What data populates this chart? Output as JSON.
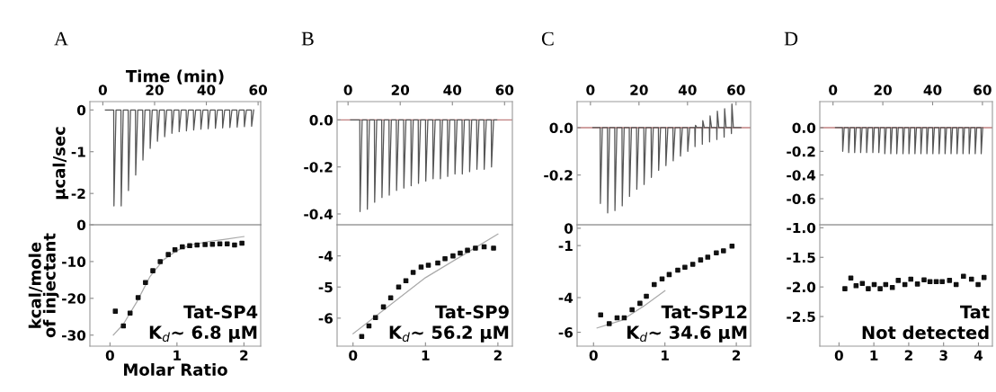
{
  "chart_data": [
    {
      "type": "line",
      "title": "A",
      "xlabel": "Time (min)",
      "ylabel": "µcal/sec",
      "xlim": [
        -5,
        61
      ],
      "xticks": [
        0,
        20,
        40,
        60
      ],
      "ylim": [
        -2.75,
        0.2
      ],
      "yticks": [
        0,
        -1,
        -2
      ],
      "series": [
        {
          "color": "#555555",
          "x": [
            1,
            4.2,
            4.3,
            5.1,
            7.0,
            7.1,
            7.9,
            9.8,
            9.9,
            10.7,
            12.6,
            12.7,
            13.5,
            15.4,
            15.5,
            16.3,
            18.2,
            18.3,
            19.1,
            21.0,
            21.1,
            21.9,
            23.8,
            23.9,
            24.7,
            26.6,
            26.7,
            27.5,
            29.4,
            29.5,
            30.3,
            32.2,
            32.3,
            33.1,
            35.0,
            35.1,
            35.9,
            37.8,
            37.9,
            38.7,
            40.6,
            40.7,
            41.5,
            43.4,
            43.5,
            44.3,
            46.2,
            46.3,
            47.1,
            49.0,
            49.1,
            49.9,
            51.8,
            51.9,
            52.7,
            54.6,
            54.7,
            55.5,
            57.4,
            57.5,
            58.3
          ],
          "values": [
            0,
            0,
            -2.3,
            0,
            0,
            -2.3,
            0,
            0,
            -1.93,
            0,
            0,
            -1.56,
            0,
            0,
            -1.2,
            0,
            0,
            -0.92,
            0,
            0,
            -0.75,
            0,
            0,
            -0.64,
            0,
            0,
            -0.56,
            0,
            0,
            -0.52,
            0,
            0,
            -0.5,
            0,
            0,
            -0.48,
            0,
            0,
            -0.46,
            0,
            0,
            -0.45,
            0,
            0,
            -0.44,
            0,
            0,
            -0.43,
            0,
            0,
            -0.42,
            0,
            0,
            -0.41,
            0,
            0,
            -0.4,
            0,
            0,
            -0.39,
            0
          ]
        }
      ]
    },
    {
      "type": "line",
      "title": "B",
      "xlim": [
        -4.2,
        63
      ],
      "xticks": [
        0,
        20,
        40,
        60
      ],
      "ylim": [
        -0.446,
        0.078
      ],
      "yticks": [
        {
          "value": 0,
          "label": "0.0"
        },
        {
          "value": -0.2,
          "label": "-0.2"
        },
        {
          "value": -0.4,
          "label": "-0.4"
        }
      ],
      "ref_lines": [
        {
          "axis": "y",
          "value": 0,
          "color": "#c08080"
        }
      ],
      "series": [
        {
          "color": "#555555",
          "x": [
            1,
            4.5,
            4.6,
            5.4,
            7.3,
            7.4,
            8.2,
            10.1,
            10.2,
            11.0,
            12.9,
            13.0,
            13.8,
            15.7,
            15.8,
            16.6,
            18.5,
            18.6,
            19.4,
            21.3,
            21.4,
            22.2,
            24.1,
            24.2,
            25.0,
            26.9,
            27.0,
            27.8,
            29.7,
            29.8,
            30.6,
            32.5,
            32.6,
            33.4,
            35.3,
            35.4,
            36.2,
            38.1,
            38.2,
            39.0,
            40.9,
            41.0,
            41.8,
            43.7,
            43.8,
            44.6,
            46.5,
            46.6,
            47.4,
            49.3,
            49.4,
            50.2,
            52.1,
            52.2,
            53.0,
            54.9,
            55.0,
            55.8,
            57
          ],
          "values": [
            0,
            0,
            -0.39,
            0,
            0,
            -0.38,
            0,
            0,
            -0.35,
            0,
            0,
            -0.33,
            0,
            0,
            -0.32,
            0,
            0,
            -0.3,
            0,
            0,
            -0.29,
            0,
            0,
            -0.28,
            0,
            0,
            -0.27,
            0,
            0,
            -0.26,
            0,
            0,
            -0.25,
            0,
            0,
            -0.25,
            0,
            0,
            -0.24,
            0,
            0,
            -0.23,
            0,
            0,
            -0.23,
            0,
            0,
            -0.22,
            0,
            0,
            -0.21,
            0,
            0,
            -0.21,
            0,
            0,
            -0.2,
            0,
            0
          ]
        }
      ]
    },
    {
      "type": "line",
      "title": "C",
      "xlim": [
        -5.5,
        66
      ],
      "xticks": [
        0,
        20,
        40,
        60
      ],
      "ylim": [
        -0.41,
        0.11
      ],
      "yticks": [
        {
          "value": 0,
          "label": "0.0"
        },
        {
          "value": -0.2,
          "label": "-0.2"
        }
      ],
      "ref_lines": [
        {
          "axis": "y",
          "value": 0,
          "color": "#c08080"
        }
      ],
      "series": [
        {
          "color": "#555555",
          "x": [
            1,
            4,
            4.1,
            4.9,
            7,
            7.1,
            7.9,
            10,
            10.1,
            10.9,
            13,
            13.1,
            13.9,
            16,
            16.1,
            16.9,
            19,
            19.1,
            19.9,
            22,
            22.1,
            22.9,
            25,
            25.1,
            25.9,
            28,
            28.1,
            28.9,
            31,
            31.1,
            31.9,
            34,
            34.1,
            34.9,
            37,
            37.1,
            37.9,
            40,
            40.1,
            40.9,
            43,
            43.1,
            43.3,
            43.9,
            46,
            46.1,
            46.3,
            46.9,
            49,
            49.1,
            49.3,
            49.9,
            52,
            52.1,
            52.3,
            52.9,
            55,
            55.1,
            55.3,
            55.9,
            58,
            58.1,
            58.3,
            58.9,
            62
          ],
          "values": [
            0,
            0,
            -0.32,
            0,
            0,
            -0.36,
            0,
            0,
            -0.35,
            0,
            0,
            -0.33,
            0,
            0,
            -0.29,
            0,
            0,
            -0.26,
            0,
            0,
            -0.24,
            0,
            0,
            -0.21,
            0,
            0,
            -0.18,
            0,
            0,
            -0.16,
            0,
            0,
            -0.14,
            0,
            0,
            -0.12,
            0,
            0,
            -0.1,
            0,
            0,
            -0.08,
            0.01,
            0,
            0,
            -0.07,
            0.03,
            0,
            0,
            -0.06,
            0.05,
            0,
            0,
            -0.05,
            0.07,
            0,
            0,
            -0.04,
            0.08,
            0,
            0,
            -0.025,
            0.1,
            0,
            0
          ]
        }
      ]
    },
    {
      "type": "line",
      "title": "D",
      "xlim": [
        -5.3,
        64
      ],
      "xticks": [
        0,
        20,
        40,
        60
      ],
      "ylim": [
        -0.82,
        0.22
      ],
      "yticks": [
        {
          "value": 0,
          "label": "0.0"
        },
        {
          "value": -0.2,
          "label": "-0.2"
        },
        {
          "value": -0.4,
          "label": "-0.4"
        },
        {
          "value": -0.6,
          "label": "-0.6"
        }
      ],
      "ref_lines": [
        {
          "axis": "y",
          "value": 0,
          "color": "#c08080"
        }
      ],
      "series": [
        {
          "color": "#555555",
          "x": [
            1,
            3.8,
            3.9,
            4.5,
            6.2,
            6.3,
            6.9,
            8.6,
            8.7,
            9.3,
            11.0,
            11.1,
            11.7,
            13.4,
            13.5,
            14.1,
            15.9,
            16.0,
            16.6,
            18.3,
            18.4,
            19.0,
            20.7,
            20.8,
            21.4,
            23.1,
            23.2,
            23.8,
            25.5,
            25.6,
            26.2,
            28.0,
            28.1,
            28.7,
            30.4,
            30.5,
            31.1,
            32.8,
            32.9,
            33.5,
            35.2,
            35.3,
            35.9,
            37.6,
            37.7,
            38.3,
            40.0,
            40.1,
            40.7,
            42.5,
            42.6,
            43.2,
            44.9,
            45.0,
            45.6,
            47.3,
            47.4,
            48.0,
            49.7,
            49.8,
            50.4,
            52.1,
            52.2,
            52.8,
            54.6,
            54.7,
            55.3,
            57.0,
            57.1,
            57.7,
            59.4,
            59.5,
            60.1
          ],
          "values": [
            0,
            0,
            -0.2,
            0,
            0,
            -0.21,
            0,
            0,
            -0.21,
            0,
            0,
            -0.21,
            0,
            0,
            -0.21,
            0,
            0,
            -0.21,
            0,
            0,
            -0.21,
            0,
            0,
            -0.22,
            0,
            0,
            -0.22,
            0,
            0,
            -0.22,
            0,
            0,
            -0.22,
            0,
            0,
            -0.22,
            0,
            0,
            -0.22,
            0,
            0,
            -0.22,
            0,
            0,
            -0.22,
            0,
            0,
            -0.22,
            0,
            0,
            -0.22,
            0,
            0,
            -0.22,
            0,
            0,
            -0.22,
            0,
            0,
            -0.22,
            0,
            0,
            -0.22,
            0,
            0,
            -0.22,
            0,
            0,
            -0.22,
            0,
            0,
            -0.22,
            0
          ]
        }
      ]
    },
    {
      "type": "scatter",
      "xlabel": "Molar Ratio",
      "ylabel": "kcal/mole\nof injectant",
      "xlim": [
        -0.3,
        2.25
      ],
      "xticks": [
        0,
        1,
        2
      ],
      "ylim": [
        -33,
        0
      ],
      "yticks": [
        0,
        -10,
        -20,
        -30
      ],
      "annotations": [
        "Tat-SP4",
        "K$_{d}$~ 6.8 µM"
      ],
      "series": [
        {
          "type": "scatter",
          "marker": "square",
          "color": "#111111",
          "x": [
            0.08,
            0.2,
            0.3,
            0.42,
            0.53,
            0.64,
            0.75,
            0.87,
            0.97,
            1.08,
            1.19,
            1.3,
            1.42,
            1.53,
            1.64,
            1.75,
            1.86,
            1.97
          ],
          "values": [
            -23.5,
            -27.5,
            -24,
            -19.8,
            -15.7,
            -12.5,
            -10,
            -8.1,
            -6.8,
            -6.0,
            -5.7,
            -5.5,
            -5.4,
            -5.3,
            -5.2,
            -5.2,
            -5.5,
            -5.0
          ]
        },
        {
          "type": "line",
          "color": "#aaaaaa",
          "x": [
            0.05,
            0.2,
            0.4,
            0.6,
            0.8,
            1.0,
            1.2,
            1.5,
            2.0
          ],
          "values": [
            -30,
            -27,
            -21,
            -14,
            -9.5,
            -7,
            -5.5,
            -4.5,
            -3.2
          ]
        }
      ]
    },
    {
      "type": "scatter",
      "xlim": [
        -0.22,
        2.2
      ],
      "xticks": [
        0,
        1,
        2
      ],
      "ylim": [
        -6.9,
        -3
      ],
      "yticks": [
        -4,
        -5,
        -6
      ],
      "annotations": [
        "Tat-SP9",
        "K$_{d}$~ 56.2 µM"
      ],
      "series": [
        {
          "type": "scatter",
          "marker": "square",
          "color": "#111111",
          "x": [
            0.12,
            0.22,
            0.31,
            0.42,
            0.52,
            0.63,
            0.73,
            0.83,
            0.94,
            1.04,
            1.17,
            1.27,
            1.38,
            1.48,
            1.58,
            1.69,
            1.81,
            1.94
          ],
          "values": [
            -6.59,
            -6.25,
            -5.98,
            -5.64,
            -5.35,
            -5.0,
            -4.8,
            -4.53,
            -4.36,
            -4.3,
            -4.23,
            -4.09,
            -4.0,
            -3.91,
            -3.82,
            -3.75,
            -3.71,
            -3.75
          ]
        },
        {
          "type": "line",
          "color": "#aaaaaa",
          "x": [
            0,
            0.5,
            1,
            1.5,
            2
          ],
          "values": [
            -6.5,
            -5.6,
            -4.7,
            -4.0,
            -3.3
          ]
        }
      ]
    },
    {
      "type": "scatter",
      "xlim": [
        -0.23,
        2.2
      ],
      "xticks": [
        0,
        1,
        2
      ],
      "ylim": [
        -6.8,
        0.2
      ],
      "yticks": [
        0,
        -1,
        -4,
        -6
      ],
      "annotations": [
        "Tat-SP12",
        "K$_{d}$~ 34.6 µM"
      ],
      "series": [
        {
          "type": "scatter",
          "marker": "square",
          "color": "#111111",
          "x": [
            0.1,
            0.22,
            0.33,
            0.43,
            0.54,
            0.65,
            0.74,
            0.85,
            0.96,
            1.06,
            1.18,
            1.28,
            1.39,
            1.5,
            1.6,
            1.72,
            1.82,
            1.94
          ],
          "values": [
            -5.0,
            -5.5,
            -5.17,
            -5.17,
            -4.7,
            -4.33,
            -3.92,
            -3.25,
            -2.92,
            -2.67,
            -2.42,
            -2.25,
            -2.08,
            -1.83,
            -1.67,
            -1.42,
            -1.3,
            -1.03
          ]
        },
        {
          "type": "line",
          "color": "#aaaaaa",
          "x": [
            0.05,
            0.4,
            0.7,
            1.0
          ],
          "values": [
            -5.75,
            -5.3,
            -4.5,
            -3.6
          ]
        }
      ]
    },
    {
      "type": "scatter",
      "xlim": [
        -0.55,
        4.4
      ],
      "xticks": [
        0,
        1,
        2,
        3,
        4
      ],
      "ylim": [
        -3.0,
        -0.95
      ],
      "yticks": [
        {
          "value": -1,
          "label": "-1.0"
        },
        {
          "value": -1.5,
          "label": "-1.5"
        },
        {
          "value": -2,
          "label": "-2.0"
        },
        {
          "value": -2.5,
          "label": "-2.5"
        }
      ],
      "annotations": [
        "Tat",
        "Not detected"
      ],
      "series": [
        {
          "type": "scatter",
          "marker": "square",
          "color": "#111111",
          "x": [
            0.17,
            0.34,
            0.49,
            0.67,
            0.84,
            1.01,
            1.18,
            1.34,
            1.53,
            1.7,
            1.89,
            2.06,
            2.25,
            2.44,
            2.61,
            2.79,
            2.96,
            3.17,
            3.36,
            3.57,
            3.8,
            3.99,
            4.16
          ],
          "values": [
            -2.03,
            -1.85,
            -1.98,
            -1.94,
            -2.03,
            -1.96,
            -2.03,
            -1.96,
            -2.01,
            -1.89,
            -1.96,
            -1.87,
            -1.95,
            -1.88,
            -1.91,
            -1.91,
            -1.91,
            -1.89,
            -1.96,
            -1.82,
            -1.87,
            -1.96,
            -1.84
          ]
        }
      ]
    }
  ]
}
